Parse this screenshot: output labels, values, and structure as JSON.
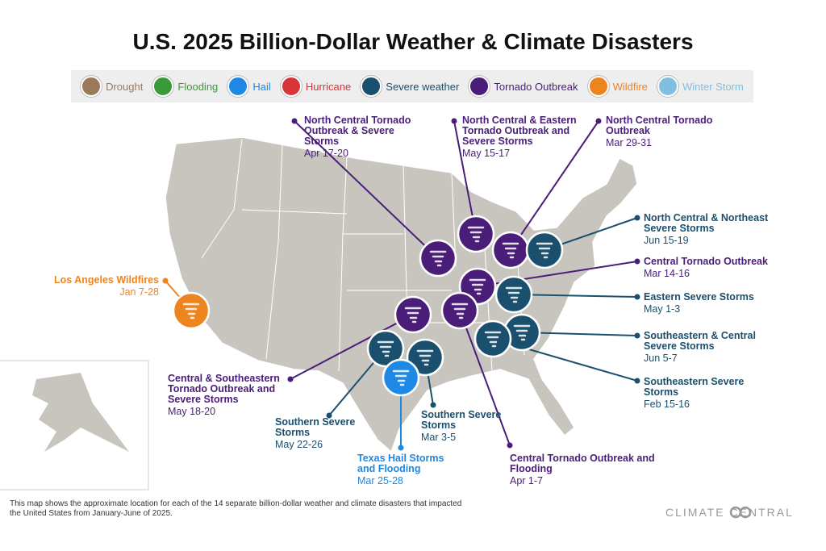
{
  "title": "U.S. 2025 Billion-Dollar Weather & Climate Disasters",
  "legend": [
    {
      "label": "Drought",
      "color": "#9b7a5c"
    },
    {
      "label": "Flooding",
      "color": "#3a9a3a"
    },
    {
      "label": "Hail",
      "color": "#1e88e5"
    },
    {
      "label": "Hurricane",
      "color": "#d9343a"
    },
    {
      "label": "Severe weather",
      "color": "#1b4f6e"
    },
    {
      "label": "Tornado Outbreak",
      "color": "#4a1d78"
    },
    {
      "label": "Wildfire",
      "color": "#ee8420"
    },
    {
      "label": "Winter Storm",
      "color": "#7fbfe0"
    }
  ],
  "events": [
    {
      "label": "North Central Tornado Outbreak & Severe Storms",
      "date": "Apr 17-20",
      "color": "#4a1d78"
    },
    {
      "label": "North Central & Eastern Tornado Outbreak and Severe Storms",
      "date": "May 15-17",
      "color": "#4a1d78"
    },
    {
      "label": "North Central Tornado Outbreak",
      "date": "Mar 29-31",
      "color": "#4a1d78"
    },
    {
      "label": "North Central & Northeast Severe Storms",
      "date": "Jun 15-19",
      "color": "#1b4f6e"
    },
    {
      "label": "Central Tornado Outbreak",
      "date": "Mar 14-16",
      "color": "#4a1d78"
    },
    {
      "label": "Eastern Severe Storms",
      "date": "May 1-3",
      "color": "#1b4f6e"
    },
    {
      "label": "Southeastern & Central Severe Storms",
      "date": "Jun 5-7",
      "color": "#1b4f6e"
    },
    {
      "label": "Southeastern Severe Storms",
      "date": "Feb 15-16",
      "color": "#1b4f6e"
    },
    {
      "label": "Central Tornado Outbreak and Flooding",
      "date": "Apr 1-7",
      "color": "#4a1d78"
    },
    {
      "label": "Central & Southeastern Tornado Outbreak and Severe Storms",
      "date": "May 18-20",
      "color": "#4a1d78"
    },
    {
      "label": "Southern Severe Storms",
      "date": "May 22-26",
      "color": "#1b4f6e"
    },
    {
      "label": "Southern Severe Storms",
      "date": "Mar 3-5",
      "color": "#1b4f6e"
    },
    {
      "label": "Texas Hail Storms and Flooding",
      "date": "Mar 25-28",
      "color": "#1e88e5"
    },
    {
      "label": "Los Angeles Wildfires",
      "date": "Jan 7-28",
      "color": "#ee8420"
    }
  ],
  "footnote": "This map shows the approximate location for each of the 14 separate billion-dollar weather and climate disasters that impacted the United States from January-June of 2025.",
  "brand": "CLIMATE CENTRAL"
}
